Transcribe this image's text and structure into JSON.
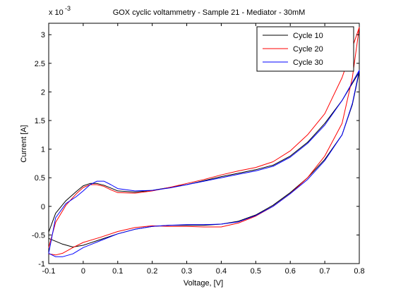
{
  "chart_data": {
    "type": "line",
    "title": "GOX cyclic voltammetry - Sample 21 - Mediator - 30mM",
    "xlabel": "Voltage, [V]",
    "ylabel": "Current [A]",
    "y_exponent_base": "x 10",
    "y_exponent_power": "-3",
    "xlim": [
      -0.1,
      0.8
    ],
    "ylim": [
      -1.0,
      3.2
    ],
    "xticks": [
      -0.1,
      0,
      0.1,
      0.2,
      0.3,
      0.4,
      0.5,
      0.6,
      0.7,
      0.8
    ],
    "xtick_labels": [
      "-0.1",
      "0",
      "0.1",
      "0.2",
      "0.3",
      "0.4",
      "0.5",
      "0.6",
      "0.7",
      "0.8"
    ],
    "yticks": [
      -1,
      -0.5,
      0,
      0.5,
      1,
      1.5,
      2,
      2.5,
      3
    ],
    "ytick_labels": [
      "-1",
      "-0.5",
      "0",
      "0.5",
      "1",
      "1.5",
      "2",
      "2.5",
      "3"
    ],
    "grid": false,
    "legend_position": "top-right",
    "series": [
      {
        "name": "Cycle 10",
        "color": "#000000",
        "x": [
          -0.1,
          -0.08,
          -0.05,
          -0.02,
          0.0,
          0.02,
          0.04,
          0.06,
          0.08,
          0.1,
          0.15,
          0.2,
          0.25,
          0.3,
          0.35,
          0.4,
          0.45,
          0.5,
          0.55,
          0.6,
          0.65,
          0.7,
          0.75,
          0.8,
          0.8,
          0.78,
          0.75,
          0.7,
          0.65,
          0.6,
          0.55,
          0.5,
          0.45,
          0.4,
          0.35,
          0.3,
          0.25,
          0.2,
          0.15,
          0.1,
          0.05,
          0.0,
          -0.03,
          -0.06,
          -0.08,
          -0.1
        ],
        "y": [
          -0.45,
          -0.12,
          0.1,
          0.26,
          0.36,
          0.4,
          0.4,
          0.37,
          0.32,
          0.27,
          0.25,
          0.28,
          0.33,
          0.38,
          0.45,
          0.52,
          0.58,
          0.64,
          0.72,
          0.88,
          1.12,
          1.45,
          1.85,
          2.35,
          2.35,
          1.78,
          1.25,
          0.82,
          0.5,
          0.24,
          0.02,
          -0.15,
          -0.26,
          -0.31,
          -0.33,
          -0.33,
          -0.33,
          -0.35,
          -0.4,
          -0.48,
          -0.58,
          -0.68,
          -0.71,
          -0.66,
          -0.61,
          -0.56
        ]
      },
      {
        "name": "Cycle 20",
        "color": "#ff0000",
        "x": [
          -0.1,
          -0.08,
          -0.05,
          -0.02,
          0.0,
          0.02,
          0.04,
          0.06,
          0.08,
          0.1,
          0.15,
          0.2,
          0.25,
          0.3,
          0.35,
          0.4,
          0.45,
          0.5,
          0.55,
          0.6,
          0.65,
          0.7,
          0.75,
          0.8,
          0.8,
          0.78,
          0.75,
          0.7,
          0.65,
          0.6,
          0.55,
          0.5,
          0.45,
          0.4,
          0.35,
          0.3,
          0.25,
          0.2,
          0.15,
          0.1,
          0.05,
          0.0,
          -0.03,
          -0.06,
          -0.08,
          -0.1
        ],
        "y": [
          -0.72,
          -0.28,
          0.02,
          0.22,
          0.33,
          0.38,
          0.38,
          0.35,
          0.29,
          0.24,
          0.23,
          0.27,
          0.33,
          0.4,
          0.47,
          0.55,
          0.62,
          0.68,
          0.78,
          0.97,
          1.25,
          1.62,
          2.25,
          3.13,
          3.13,
          2.25,
          1.45,
          0.88,
          0.5,
          0.22,
          0.0,
          -0.17,
          -0.29,
          -0.36,
          -0.36,
          -0.35,
          -0.35,
          -0.34,
          -0.37,
          -0.44,
          -0.54,
          -0.63,
          -0.72,
          -0.82,
          -0.85,
          -0.83
        ]
      },
      {
        "name": "Cycle 30",
        "color": "#0000ff",
        "x": [
          -0.1,
          -0.08,
          -0.05,
          -0.02,
          0.0,
          0.02,
          0.04,
          0.06,
          0.08,
          0.1,
          0.15,
          0.2,
          0.25,
          0.3,
          0.35,
          0.4,
          0.45,
          0.5,
          0.55,
          0.6,
          0.65,
          0.7,
          0.75,
          0.8,
          0.8,
          0.78,
          0.75,
          0.7,
          0.65,
          0.6,
          0.55,
          0.5,
          0.45,
          0.4,
          0.35,
          0.3,
          0.25,
          0.2,
          0.15,
          0.1,
          0.05,
          0.0,
          -0.03,
          -0.06,
          -0.08,
          -0.1
        ],
        "y": [
          -0.82,
          -0.2,
          0.05,
          0.17,
          0.27,
          0.38,
          0.44,
          0.44,
          0.38,
          0.31,
          0.27,
          0.28,
          0.32,
          0.38,
          0.44,
          0.5,
          0.56,
          0.62,
          0.7,
          0.86,
          1.1,
          1.42,
          1.85,
          2.38,
          2.38,
          1.8,
          1.25,
          0.8,
          0.47,
          0.22,
          0.0,
          -0.16,
          -0.27,
          -0.31,
          -0.32,
          -0.32,
          -0.33,
          -0.35,
          -0.4,
          -0.48,
          -0.6,
          -0.72,
          -0.83,
          -0.88,
          -0.88,
          -0.82
        ]
      }
    ]
  }
}
